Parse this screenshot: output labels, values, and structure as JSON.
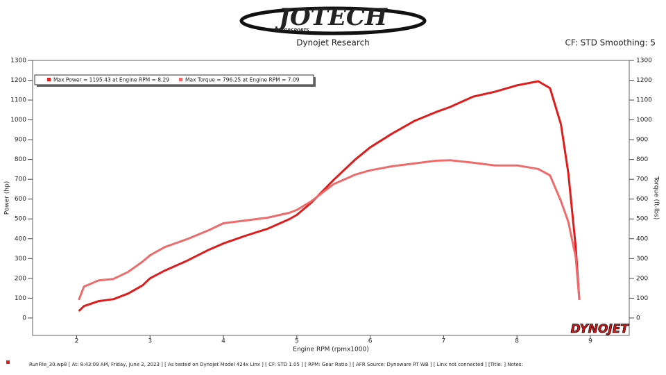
{
  "chart_data": {
    "type": "line",
    "logo": "JOTECH",
    "logo_subtitle": "MOTORSPORTS",
    "title": "Dynojet Research",
    "subtitle": "CF: STD Smoothing: 5",
    "x_label": "Engine RPM (rpmx1000)",
    "y_label": "Power (hp)",
    "y2_label": "Torque (ft-lbs)",
    "watermark": "DYNOJET",
    "footer": "RunFile_30.wp8  [ At:  8:43:09 AM, Friday, June 2, 2023 ]  [ As tested on Dynojet Model 424x Linx ]  [ CF: STD 1.05 ]  [ RPM: Gear Ratio ]  [ AFR Source: Dynoware RT WB ]  [ Linx not connected ]  [Title:  ]   Notes:",
    "x": [
      2.03,
      2.1,
      2.3,
      2.5,
      2.7,
      2.9,
      3.0,
      3.2,
      3.5,
      3.8,
      4.0,
      4.3,
      4.6,
      4.9,
      5.0,
      5.2,
      5.5,
      5.8,
      6.0,
      6.3,
      6.6,
      6.9,
      7.09,
      7.4,
      7.7,
      8.0,
      8.29,
      8.45,
      8.6,
      8.7,
      8.8,
      8.85
    ],
    "series": [
      {
        "name": "Max Power = 1195.43 at Engine RPM = 8.29",
        "color": "#e01b1b",
        "values": [
          35,
          60,
          85,
          95,
          123,
          165,
          200,
          239,
          288,
          344,
          376,
          415,
          450,
          499,
          520,
          583,
          696,
          801,
          861,
          931,
          994,
          1040,
          1065,
          1117,
          1142,
          1174,
          1195,
          1160,
          977,
          731,
          360,
          91
        ]
      },
      {
        "name": "Max Torque = 796.25 at Engine RPM = 7.09",
        "color": "#ee6b6b",
        "axis": "y2",
        "values": [
          91,
          158,
          190,
          197,
          232,
          285,
          316,
          358,
          397,
          443,
          478,
          492,
          506,
          531,
          545,
          590,
          675,
          724,
          745,
          766,
          780,
          794,
          796,
          784,
          770,
          770,
          752,
          720,
          590,
          485,
          309,
          91
        ]
      }
    ],
    "xlim": [
      1.4,
      9.53
    ],
    "xticks": [
      2,
      3,
      4,
      5,
      6,
      7,
      8,
      9
    ],
    "ylim": [
      -88,
      1300
    ],
    "yticks": [
      0,
      100,
      200,
      300,
      400,
      500,
      600,
      700,
      800,
      900,
      1000,
      1100,
      1200,
      1300
    ],
    "y2lim": [
      -88,
      1300
    ],
    "y2ticks": [
      0,
      100,
      200,
      300,
      400,
      500,
      600,
      700,
      800,
      900,
      1000,
      1100,
      1200,
      1300
    ],
    "grid": false
  }
}
